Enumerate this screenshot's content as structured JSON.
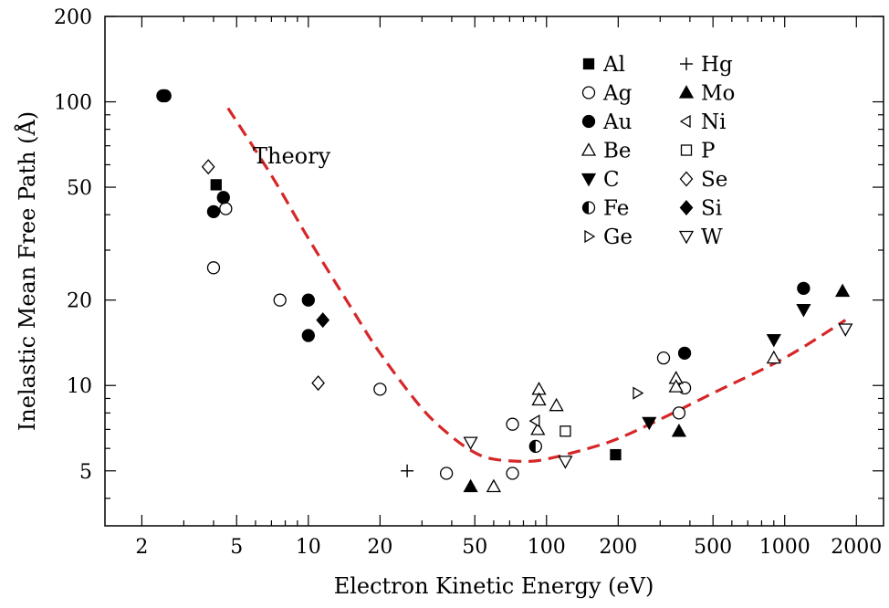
{
  "chart_data": {
    "type": "scatter",
    "xlabel": "Electron Kinetic Energy  (eV)",
    "ylabel": "Inelastic Mean Free Path (Å)",
    "xscale": "log",
    "yscale": "log",
    "xlim": [
      1.4,
      2600
    ],
    "ylim": [
      3.2,
      200
    ],
    "xticks": [
      2,
      5,
      10,
      20,
      50,
      100,
      200,
      500,
      1000,
      2000
    ],
    "xtick_labels": [
      "2",
      "5",
      "10",
      "20",
      "50",
      "100",
      "200",
      "500",
      "1000",
      "2000"
    ],
    "yticks": [
      5,
      10,
      20,
      50,
      100,
      200
    ],
    "ytick_labels": [
      "5",
      "10",
      "20",
      "50",
      "100",
      "200"
    ],
    "grid": false,
    "legend_position": "top-right",
    "theory": {
      "label": "Theory",
      "color": "#d62728",
      "points": [
        [
          4.6,
          95
        ],
        [
          7,
          55
        ],
        [
          10,
          33
        ],
        [
          15,
          19
        ],
        [
          20,
          13
        ],
        [
          30,
          8.3
        ],
        [
          40,
          6.6
        ],
        [
          50,
          5.8
        ],
        [
          60,
          5.5
        ],
        [
          80,
          5.4
        ],
        [
          100,
          5.5
        ],
        [
          150,
          6.0
        ],
        [
          200,
          6.5
        ],
        [
          300,
          7.6
        ],
        [
          500,
          9.4
        ],
        [
          1000,
          12.5
        ],
        [
          1800,
          17
        ]
      ]
    },
    "series": [
      {
        "name": "Al",
        "marker": "square-filled",
        "points": [
          [
            4.1,
            51
          ],
          [
            195,
            5.7
          ]
        ]
      },
      {
        "name": "Ag",
        "marker": "circle-open",
        "points": [
          [
            4.0,
            26
          ],
          [
            4.5,
            42
          ],
          [
            7.6,
            20
          ],
          [
            20,
            9.7
          ],
          [
            38,
            4.9
          ],
          [
            72,
            7.3
          ],
          [
            72,
            4.9
          ],
          [
            310,
            12.5
          ],
          [
            360,
            8.0
          ],
          [
            380,
            9.8
          ]
        ]
      },
      {
        "name": "Au",
        "marker": "circle-filled",
        "points": [
          [
            2.45,
            105
          ],
          [
            2.5,
            105
          ],
          [
            4.0,
            41
          ],
          [
            4.4,
            46
          ],
          [
            10,
            20
          ],
          [
            10,
            15
          ],
          [
            380,
            13
          ],
          [
            1200,
            22
          ]
        ]
      },
      {
        "name": "Be",
        "marker": "triangle-up-open",
        "points": [
          [
            60,
            4.4
          ],
          [
            92,
            7.0
          ],
          [
            93,
            9.7
          ],
          [
            93,
            8.9
          ],
          [
            110,
            8.5
          ],
          [
            350,
            10.6
          ],
          [
            350,
            9.9
          ],
          [
            900,
            12.5
          ]
        ]
      },
      {
        "name": "C",
        "marker": "triangle-down-filled",
        "points": [
          [
            270,
            7.4
          ],
          [
            900,
            14.5
          ],
          [
            1200,
            18.5
          ]
        ]
      },
      {
        "name": "Fe",
        "marker": "circle-half",
        "points": [
          [
            90,
            6.1
          ]
        ]
      },
      {
        "name": "Ge",
        "marker": "triangle-right-open",
        "points": [
          [
            240,
            9.4
          ]
        ]
      },
      {
        "name": "Hg",
        "marker": "plus",
        "points": [
          [
            26,
            5.0
          ]
        ]
      },
      {
        "name": "Mo",
        "marker": "triangle-up-filled",
        "points": [
          [
            48,
            4.4
          ],
          [
            360,
            6.9
          ],
          [
            1750,
            21.5
          ]
        ]
      },
      {
        "name": "Ni",
        "marker": "triangle-left-open",
        "points": [
          [
            90,
            7.5
          ]
        ]
      },
      {
        "name": "P",
        "marker": "square-open",
        "points": [
          [
            120,
            6.9
          ]
        ]
      },
      {
        "name": "Se",
        "marker": "diamond-open",
        "points": [
          [
            3.8,
            59
          ],
          [
            11,
            10.2
          ]
        ]
      },
      {
        "name": "Si",
        "marker": "diamond-filled",
        "points": [
          [
            11.5,
            17
          ]
        ]
      },
      {
        "name": "W",
        "marker": "triangle-down-open",
        "points": [
          [
            48,
            6.3
          ],
          [
            120,
            5.4
          ],
          [
            1800,
            15.8
          ]
        ]
      }
    ]
  }
}
